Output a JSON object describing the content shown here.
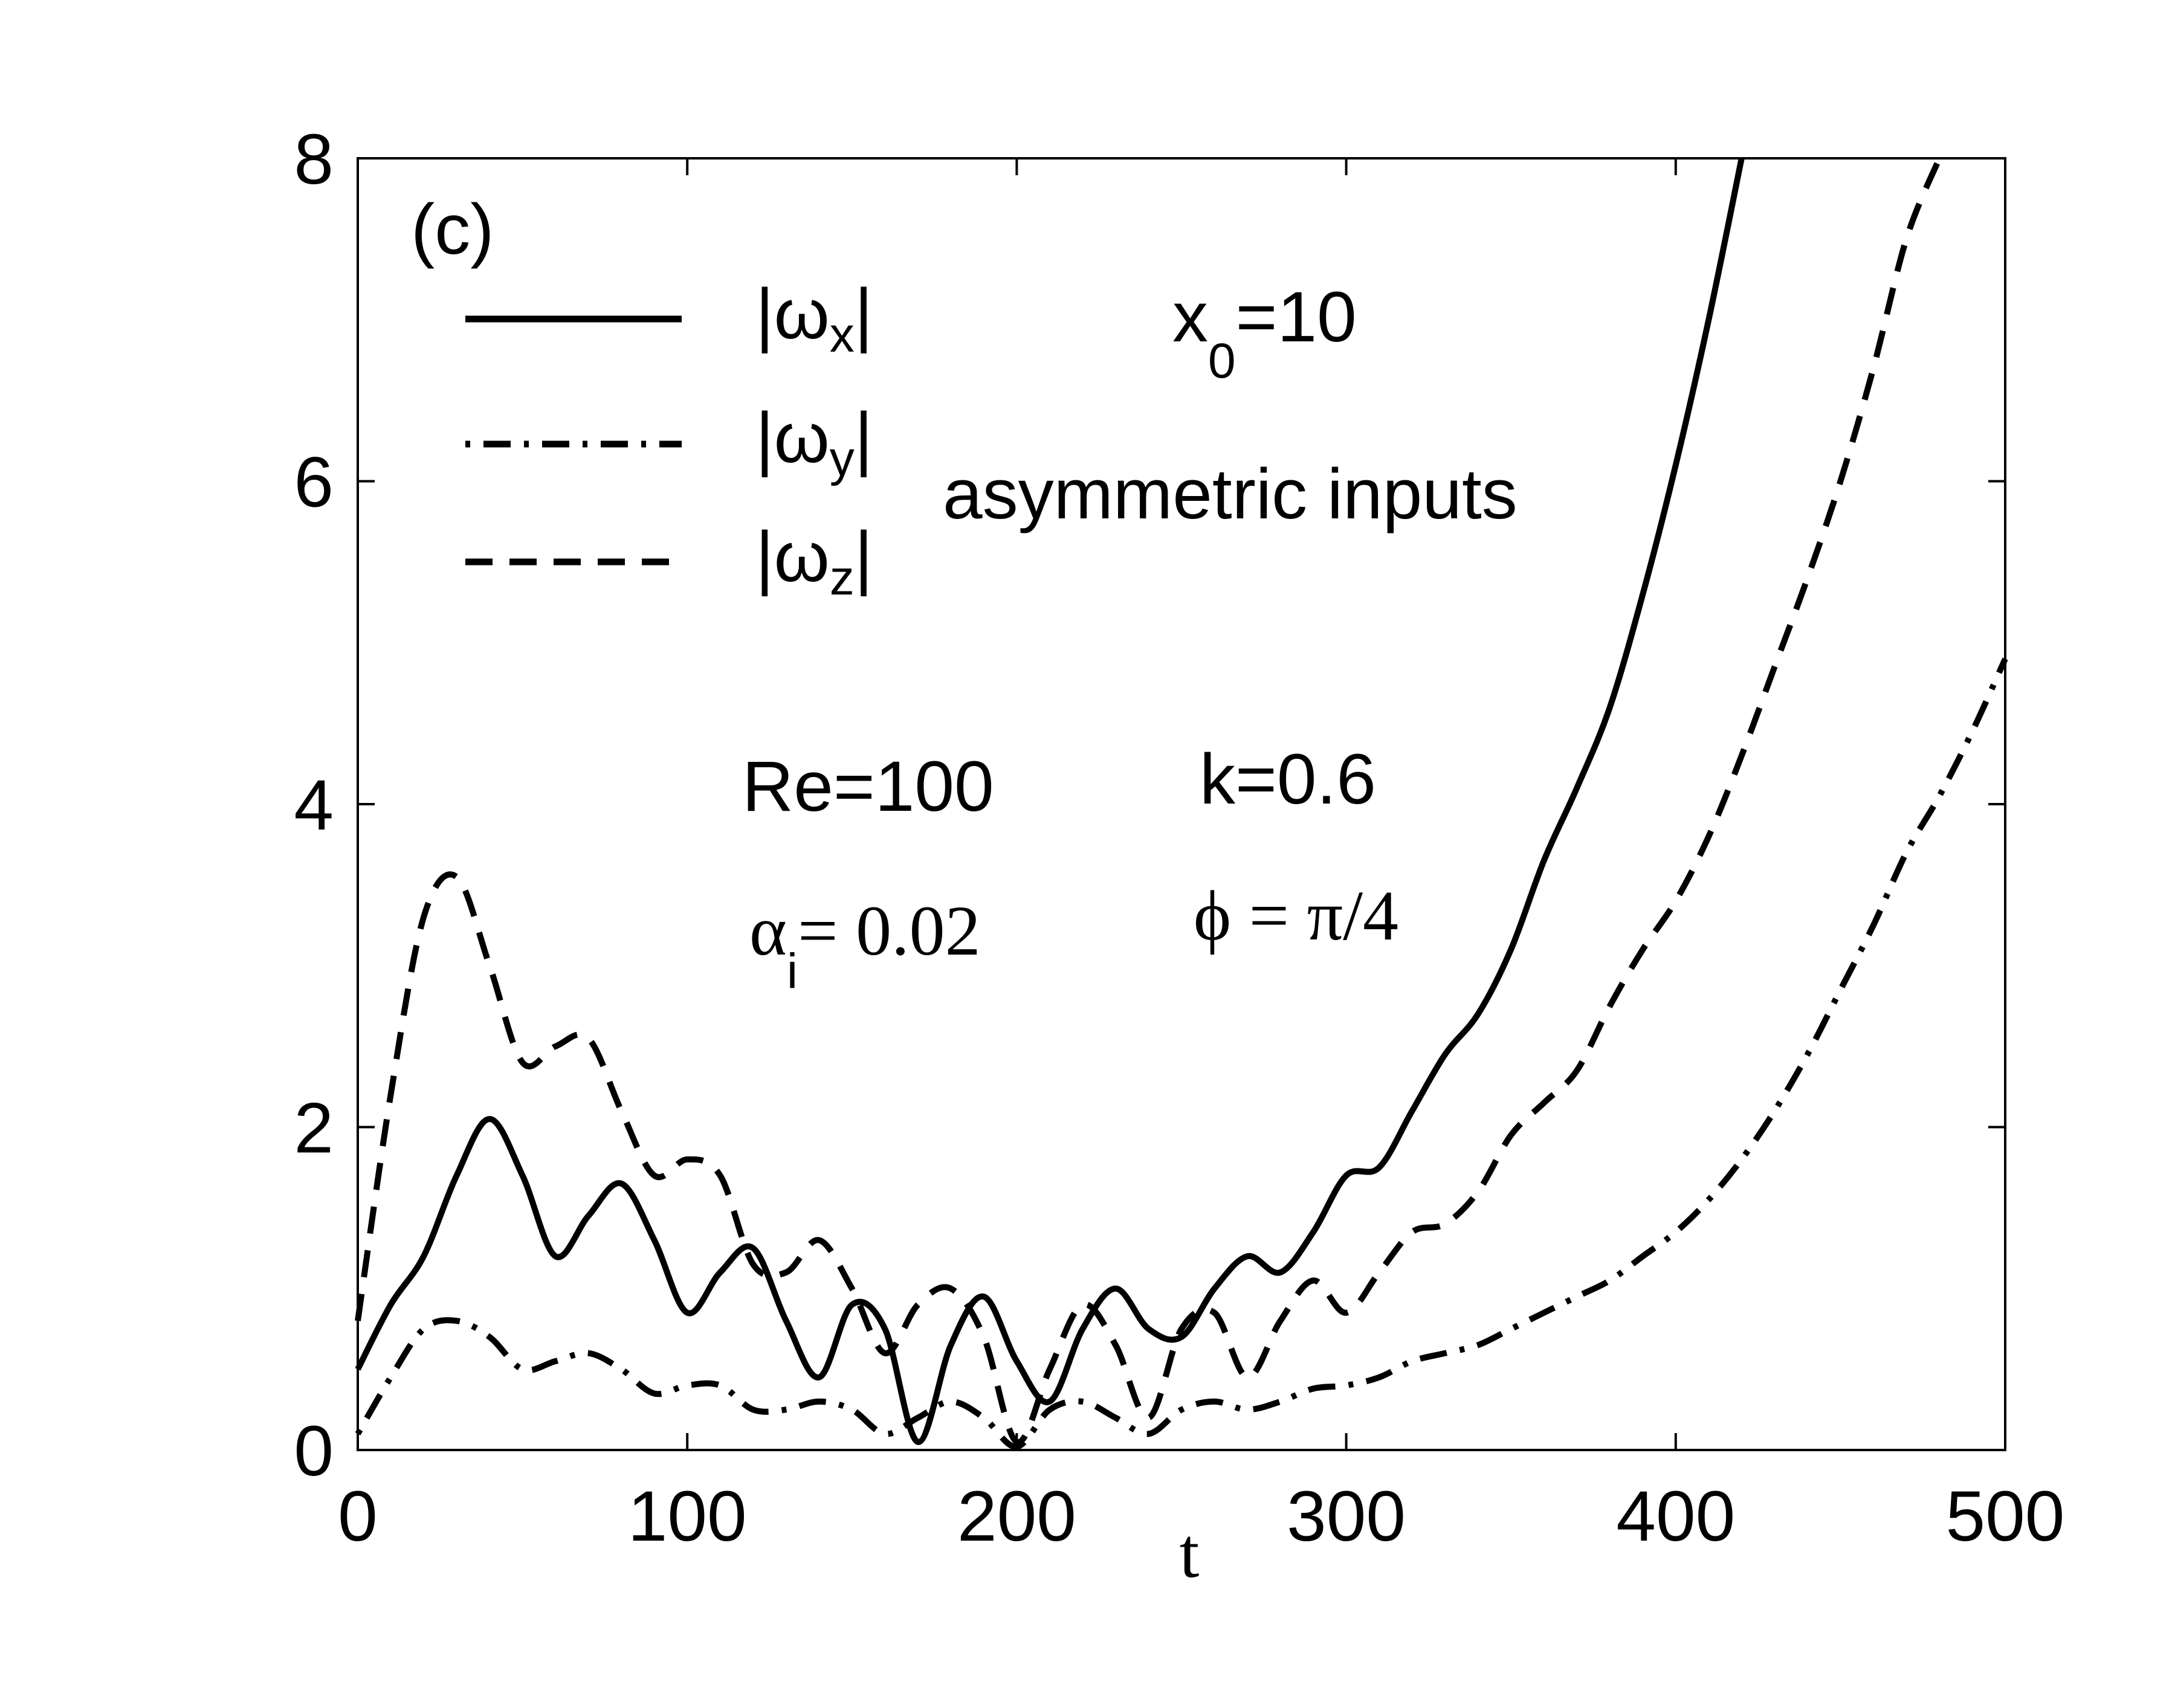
{
  "chart_data": {
    "type": "line",
    "panel_label": "(c)",
    "xlabel": "t",
    "ylabel": "",
    "xlim": [
      0,
      500
    ],
    "ylim": [
      0,
      8
    ],
    "xticks": [
      0,
      100,
      200,
      300,
      400,
      500
    ],
    "yticks": [
      0,
      2,
      4,
      6,
      8
    ],
    "x": [
      0,
      10,
      20,
      30,
      40,
      50,
      60,
      70,
      80,
      90,
      100,
      110,
      120,
      130,
      140,
      150,
      160,
      170,
      180,
      190,
      200,
      210,
      220,
      230,
      240,
      250,
      260,
      270,
      280,
      290,
      300,
      310,
      320,
      330,
      340,
      350,
      360,
      370,
      380,
      390,
      400,
      410,
      420,
      430,
      440,
      450,
      460,
      470,
      480,
      490,
      500
    ],
    "series": [
      {
        "name": "|ωx|",
        "legend_text": "|ω",
        "legend_sub": "x",
        "style": "solid",
        "values": [
          0.5,
          0.9,
          1.2,
          1.7,
          2.05,
          1.7,
          1.2,
          1.45,
          1.65,
          1.3,
          0.85,
          1.1,
          1.25,
          0.8,
          0.45,
          0.9,
          0.75,
          0.05,
          0.65,
          0.95,
          0.55,
          0.3,
          0.75,
          1.0,
          0.75,
          0.7,
          1.0,
          1.2,
          1.1,
          1.35,
          1.7,
          1.75,
          2.1,
          2.45,
          2.7,
          3.1,
          3.65,
          4.1,
          4.6,
          5.3,
          6.1,
          7.0,
          8.0,
          null,
          null,
          null,
          null,
          null,
          null,
          null,
          null
        ]
      },
      {
        "name": "|ωy|",
        "legend_text": "|ω",
        "legend_sub": "y",
        "style": "dashdot",
        "values": [
          0.1,
          0.45,
          0.75,
          0.8,
          0.7,
          0.5,
          0.55,
          0.6,
          0.5,
          0.35,
          0.4,
          0.4,
          0.25,
          0.25,
          0.3,
          0.25,
          0.1,
          0.2,
          0.3,
          0.2,
          0.02,
          0.25,
          0.3,
          0.2,
          0.1,
          0.25,
          0.3,
          0.25,
          0.3,
          0.38,
          0.4,
          0.45,
          0.55,
          0.6,
          0.65,
          0.75,
          0.85,
          0.95,
          1.05,
          1.2,
          1.35,
          1.55,
          1.8,
          2.1,
          2.45,
          2.85,
          3.25,
          3.7,
          4.05,
          4.45,
          4.9
        ]
      },
      {
        "name": "|ωz|",
        "legend_text": "|ω",
        "legend_sub": "z",
        "style": "dashed",
        "values": [
          0.8,
          2.2,
          3.3,
          3.55,
          3.0,
          2.4,
          2.5,
          2.55,
          2.1,
          1.7,
          1.8,
          1.7,
          1.15,
          1.1,
          1.3,
          1.0,
          0.6,
          0.9,
          1.0,
          0.7,
          0.05,
          0.5,
          0.9,
          0.65,
          0.2,
          0.75,
          0.85,
          0.45,
          0.8,
          1.05,
          0.85,
          1.1,
          1.35,
          1.4,
          1.6,
          1.95,
          2.15,
          2.35,
          2.75,
          3.1,
          3.4,
          3.8,
          4.3,
          4.85,
          5.4,
          6.0,
          6.7,
          7.5,
          8.0,
          null,
          null
        ]
      }
    ],
    "annotations": {
      "x0_main": "x",
      "x0_sub": "0",
      "x0_rest": "=10",
      "asymmetric": "asymmetric inputs",
      "re": "Re=100",
      "k": "k=0.6",
      "alpha_main": "α",
      "alpha_sub": "i",
      "alpha_rest": "= 0.02",
      "phi": "ϕ = π/4"
    },
    "legend_position": "top-left"
  }
}
